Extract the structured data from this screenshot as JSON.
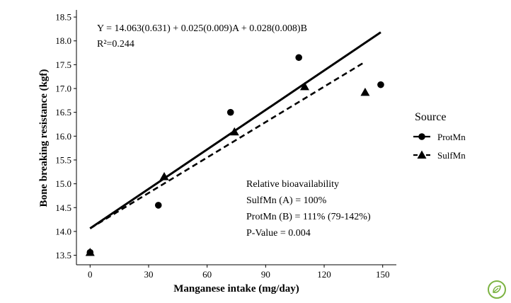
{
  "chart_data": {
    "type": "scatter",
    "xlabel": "Manganese intake (mg/day)",
    "ylabel": "Bone breaking resistance (kgf)",
    "xlim": [
      -7,
      157
    ],
    "ylim": [
      13.3,
      18.65
    ],
    "xticks": [
      0,
      30,
      60,
      90,
      120,
      150
    ],
    "xtick_labels": [
      "0",
      "30",
      "60",
      "90",
      "120",
      "150"
    ],
    "yticks": [
      13.5,
      14.0,
      14.5,
      15.0,
      15.5,
      16.0,
      16.5,
      17.0,
      17.5,
      18.0,
      18.5
    ],
    "ytick_labels": [
      "13.5",
      "14.0",
      "14.5",
      "15.0",
      "15.5",
      "16.0",
      "16.5",
      "17.0",
      "17.5",
      "18.0",
      "18.5"
    ],
    "grid": false,
    "legend_title": "Source",
    "legend_position": "right",
    "series": [
      {
        "name": "ProtMn",
        "marker": "circle",
        "line_style": "solid",
        "points": [
          [
            0,
            13.56
          ],
          [
            35,
            14.55
          ],
          [
            72,
            16.5
          ],
          [
            107,
            17.65
          ],
          [
            149,
            17.08
          ]
        ],
        "fit_line": [
          [
            0,
            14.063
          ],
          [
            149,
            18.18
          ]
        ]
      },
      {
        "name": "SulfMn",
        "marker": "triangle",
        "line_style": "dashed",
        "points": [
          [
            0,
            13.56
          ],
          [
            38,
            15.15
          ],
          [
            74,
            16.09
          ],
          [
            110,
            17.04
          ],
          [
            141,
            16.92
          ]
        ],
        "fit_line": [
          [
            0,
            14.063
          ],
          [
            141,
            17.56
          ]
        ]
      }
    ],
    "annotations": {
      "equation": "Y = 14.063(0.631) + 0.025(0.009)A + 0.028(0.008)B",
      "r_squared": "R²=0.244",
      "bio_title": "Relative bioavailability",
      "bio_sulf": "SulfMn (A) = 100%",
      "bio_prot": "ProtMn (B) = 111% (79-142%)",
      "p_value": "P-Value = 0.004"
    }
  },
  "colors": {
    "ink": "#000000",
    "logo": "#7cb342"
  },
  "icons": {
    "logo": "leaf-logo-icon"
  }
}
